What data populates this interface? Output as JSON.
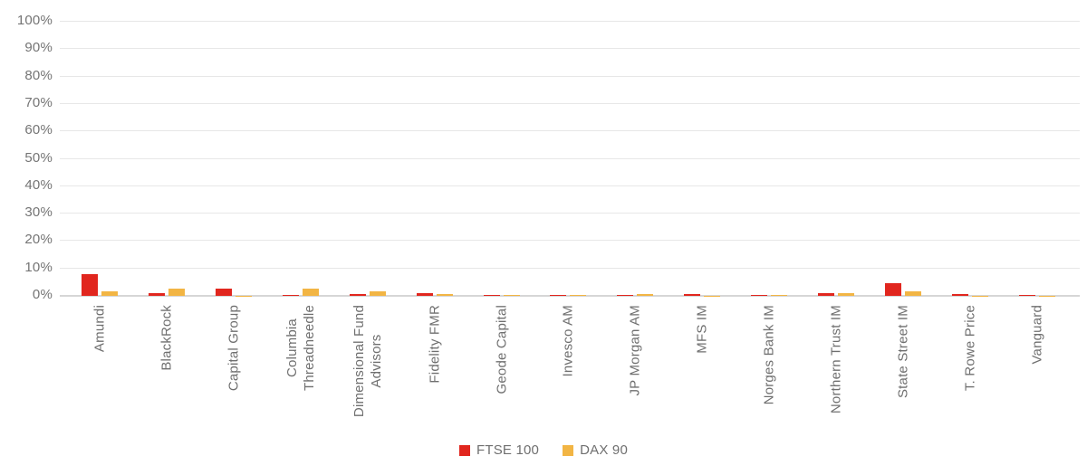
{
  "chart_data": {
    "type": "bar",
    "title": "",
    "xlabel": "",
    "ylabel": "",
    "categories": [
      "Amundi",
      "BlackRock",
      "Capital Group",
      "Columbia\nThreadneedle",
      "Dimensional Fund\nAdvisors",
      "Fidelity FMR",
      "Geode Capital",
      "Invesco AM",
      "JP Morgan AM",
      "MFS IM",
      "Norges Bank IM",
      "Northern Trust IM",
      "State Street IM",
      "T. Rowe Price",
      "Vanguard"
    ],
    "series": [
      {
        "name": "FTSE 100",
        "color": "#e1261e",
        "values": [
          8.0,
          1.1,
          2.8,
          0.3,
          0.8,
          1.0,
          0.2,
          0.3,
          0.3,
          0.7,
          0.2,
          1.1,
          4.5,
          0.5,
          0.2
        ]
      },
      {
        "name": "DAX 90",
        "color": "#f2b544",
        "values": [
          1.5,
          2.7,
          0.1,
          2.7,
          1.8,
          0.5,
          0.2,
          0.2,
          0.8,
          0.1,
          0.2,
          1.0,
          1.5,
          0.1,
          0.1
        ]
      }
    ],
    "y_axis": {
      "unit": "%",
      "min": 0,
      "max": 100,
      "step": 10,
      "ticks": [
        "100%",
        "90%",
        "80%",
        "70%",
        "60%",
        "50%",
        "40%",
        "30%",
        "20%",
        "10%",
        "0%"
      ]
    },
    "grid": "horizontal",
    "legend_position": "bottom"
  },
  "colors": {
    "background": "#ffffff",
    "grid_line": "#e7e7e7",
    "zero_line": "#d6d6d6",
    "axis_text": "#747474",
    "label_text": "#6f6f6f"
  }
}
